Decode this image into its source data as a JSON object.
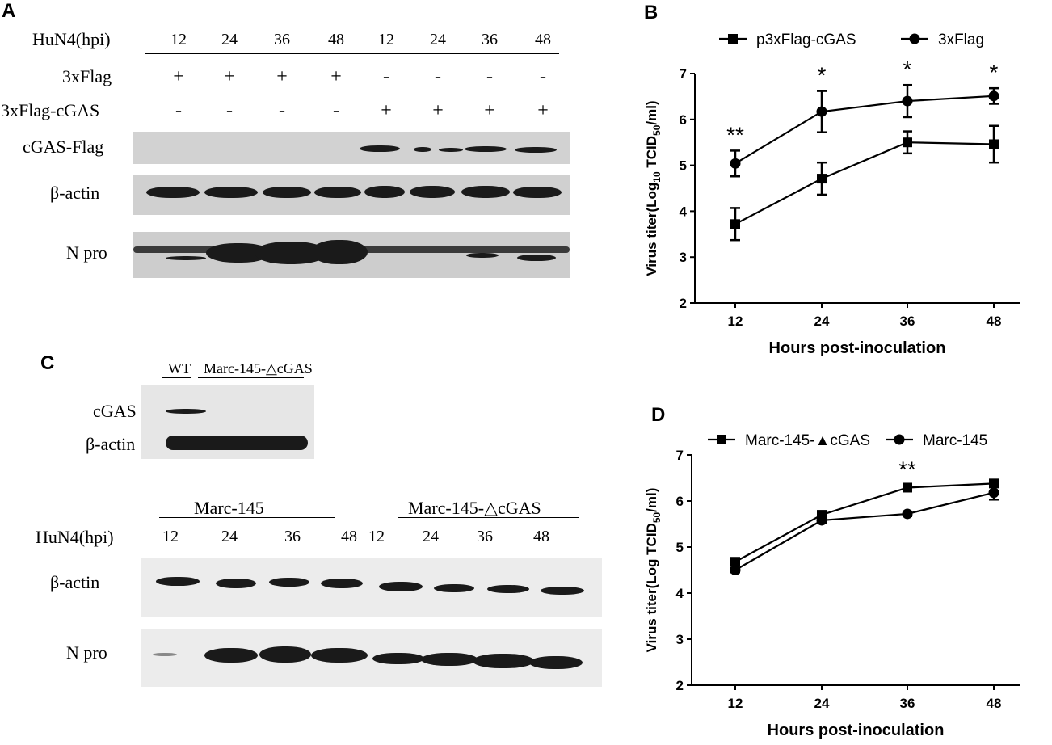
{
  "panel_a": {
    "letter": "A",
    "hpi_label": "HuN4(hpi)",
    "timepoints": [
      "12",
      "24",
      "36",
      "48",
      "12",
      "24",
      "36",
      "48"
    ],
    "row1_label": "3xFlag",
    "row1_marks": [
      "+",
      "+",
      "+",
      "+",
      "-",
      "-",
      "-",
      "-"
    ],
    "row2_label": "3xFlag-cGAS",
    "row2_marks": [
      "-",
      "-",
      "-",
      "-",
      "+",
      "+",
      "+",
      "+"
    ],
    "blot_labels": [
      "cGAS-Flag",
      "β-actin",
      "N pro"
    ]
  },
  "panel_c": {
    "letter": "C",
    "wt_label": "WT",
    "ko_label": "Marc-145-△cGAS",
    "top_blot_labels": [
      "cGAS",
      "β-actin"
    ],
    "group1": "Marc-145",
    "group2": "Marc-145-△cGAS",
    "hpi_label": "HuN4(hpi)",
    "timepoints": [
      "12",
      "24",
      "36",
      "48",
      "12",
      "24",
      "36",
      "48"
    ],
    "blot_labels": [
      "β-actin",
      "N pro"
    ]
  },
  "chart_data": [
    {
      "panel": "B",
      "type": "line",
      "x": [
        12,
        24,
        36,
        48
      ],
      "xticks": [
        "12",
        "24",
        "36",
        "48"
      ],
      "yticks": [
        "2",
        "3",
        "4",
        "5",
        "6",
        "7"
      ],
      "ylim": [
        2,
        7
      ],
      "xlabel": "Hours post-inoculation",
      "ylabel_main": "Virus titer(Log",
      "ylabel_sub1": "10",
      "ylabel_mid": " TCID",
      "ylabel_sub2": "50",
      "ylabel_end": "/ml)",
      "series": [
        {
          "name": "p3xFlag-cGAS",
          "marker": "square",
          "values": [
            3.72,
            4.71,
            5.5,
            5.46
          ],
          "err": [
            0.35,
            0.35,
            0.24,
            0.4
          ]
        },
        {
          "name": "3xFlag",
          "marker": "circle",
          "values": [
            5.04,
            6.17,
            6.4,
            6.51
          ],
          "err": [
            0.28,
            0.45,
            0.35,
            0.17
          ]
        }
      ],
      "annotations": [
        "**",
        "*",
        "*",
        "*"
      ]
    },
    {
      "panel": "D",
      "type": "line",
      "x": [
        12,
        24,
        36,
        48
      ],
      "xticks": [
        "12",
        "24",
        "36",
        "48"
      ],
      "yticks": [
        "2",
        "3",
        "4",
        "5",
        "6",
        "7"
      ],
      "ylim": [
        2,
        7
      ],
      "xlabel": "Hours post-inoculation",
      "ylabel_main": "Virus titer(Log TCID",
      "ylabel_sub2": "50",
      "ylabel_end": "/ml)",
      "series": [
        {
          "name": "Marc-145-▲cGAS",
          "marker": "square",
          "values": [
            4.68,
            5.7,
            6.29,
            6.38
          ],
          "err": [
            0.05,
            0.05,
            0.05,
            0.05
          ]
        },
        {
          "name": "Marc-145",
          "marker": "circle",
          "values": [
            4.5,
            5.58,
            5.72,
            6.18
          ],
          "err": [
            0.05,
            0.05,
            0.05,
            0.15
          ]
        }
      ],
      "annotations": [
        "",
        "",
        "**",
        ""
      ]
    }
  ]
}
